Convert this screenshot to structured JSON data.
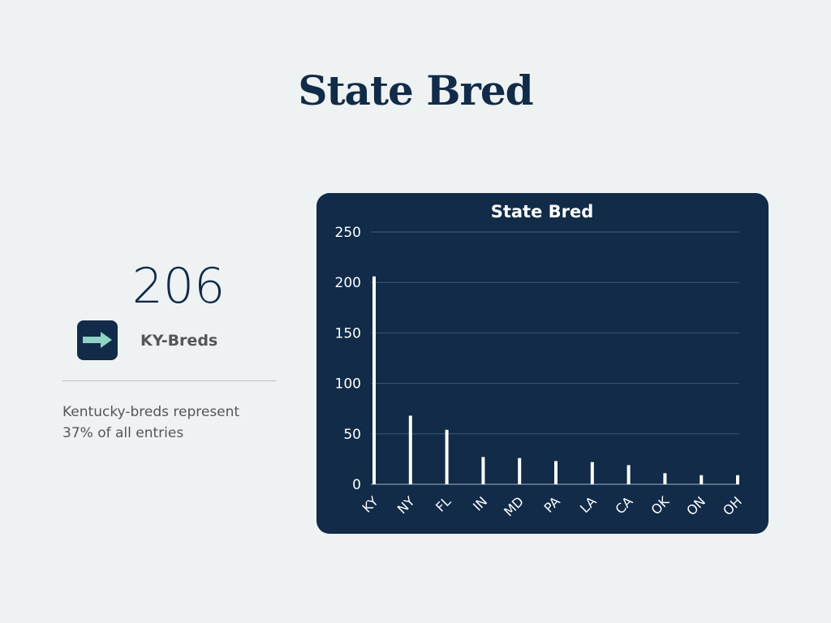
{
  "page_title": "State Bred",
  "stat": {
    "value": "206",
    "label": "KY-Breds",
    "icon": "arrow-right-icon",
    "description": "Kentucky-breds represent 37% of all entries"
  },
  "colors": {
    "navy": "#112b48",
    "accent": "#8fd3c3",
    "bar": "#ffffff"
  },
  "chart_data": {
    "type": "bar",
    "title": "State Bred",
    "categories": [
      "KY",
      "NY",
      "FL",
      "IN",
      "MD",
      "PA",
      "LA",
      "CA",
      "OK",
      "ON",
      "OH"
    ],
    "values": [
      206,
      68,
      54,
      27,
      26,
      23,
      22,
      19,
      11,
      9,
      9
    ],
    "ylim": [
      0,
      250
    ],
    "yticks": [
      "0",
      "50",
      "100",
      "150",
      "200",
      "250"
    ],
    "xlabel": "",
    "ylabel": "",
    "grid": true,
    "legend": "none"
  }
}
